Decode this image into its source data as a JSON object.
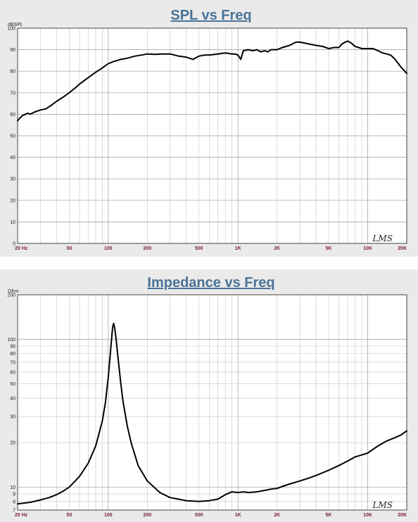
{
  "chart_data": [
    {
      "type": "line",
      "title": "SPL vs Freq",
      "ylabel": "dBSPL",
      "xlabel": "",
      "xscale": "log",
      "xlim": [
        20,
        20000
      ],
      "ylim": [
        0,
        100
      ],
      "grid": true,
      "watermark": "LMS",
      "xtick_labels": [
        "20 Hz",
        "50",
        "100",
        "200",
        "500",
        "1K",
        "2K",
        "5K",
        "10K",
        "20K"
      ],
      "ytick_labels": [
        "100",
        "90",
        "80",
        "70",
        "60",
        "50",
        "40",
        "30",
        "20",
        "10",
        "0"
      ],
      "series": [
        {
          "x": [
            20,
            21,
            22,
            24,
            25,
            27,
            30,
            33,
            36,
            40,
            45,
            50,
            55,
            60,
            70,
            80,
            90,
            100,
            110,
            125,
            140,
            160,
            180,
            200,
            230,
            260,
            300,
            350,
            400,
            450,
            500,
            550,
            600,
            700,
            800,
            900,
            950,
            1000,
            1050,
            1100,
            1200,
            1300,
            1400,
            1500,
            1600,
            1700,
            1800,
            2000,
            2200,
            2500,
            2800,
            3000,
            3300,
            3600,
            4000,
            4500,
            5000,
            5500,
            6000,
            6300,
            6700,
            7000,
            7500,
            8000,
            8500,
            9000,
            10000,
            11000,
            12000,
            13000,
            14000,
            15000,
            16000,
            17000,
            18000,
            19000,
            20000
          ],
          "y": [
            57,
            58.5,
            59.5,
            60.5,
            60,
            61,
            62,
            62.5,
            64,
            66,
            68,
            70,
            72,
            74,
            77,
            79.5,
            81.5,
            83.5,
            84.5,
            85.5,
            86,
            87,
            87.5,
            88,
            87.8,
            88,
            88,
            87,
            86.5,
            85.5,
            87,
            87.5,
            87.5,
            88,
            88.5,
            88,
            88,
            87.5,
            85.5,
            89.5,
            90,
            89.5,
            90,
            89,
            89.5,
            89,
            90,
            90,
            91,
            92,
            93.5,
            93.5,
            93,
            92.5,
            92,
            91.5,
            90.5,
            91,
            91,
            92.5,
            93.5,
            94,
            93,
            91.5,
            91,
            90.5,
            90.5,
            90.5,
            89.5,
            88.5,
            88,
            87.5,
            86,
            84,
            82,
            80.5,
            79
          ]
        }
      ]
    },
    {
      "type": "line",
      "title": "Impedance vs Freq",
      "ylabel": "Ohm",
      "xlabel": "",
      "xscale": "log",
      "yscale": "log",
      "xlim": [
        20,
        20000
      ],
      "ylim": [
        7,
        200
      ],
      "grid": true,
      "watermark": "LMS",
      "xtick_labels": [
        "20 Hz",
        "50",
        "100",
        "200",
        "500",
        "1K",
        "2K",
        "5K",
        "10K",
        "20K"
      ],
      "ytick_labels": [
        "200",
        "100",
        "90",
        "80",
        "70",
        "60",
        "50",
        "40",
        "30",
        "20",
        "10",
        "9",
        "8",
        "7"
      ],
      "series": [
        {
          "x": [
            20,
            25,
            30,
            35,
            40,
            45,
            50,
            60,
            70,
            80,
            90,
            95,
            100,
            105,
            108,
            110,
            112,
            115,
            120,
            125,
            130,
            140,
            150,
            170,
            200,
            250,
            300,
            400,
            500,
            600,
            700,
            800,
            900,
            1000,
            1100,
            1200,
            1400,
            1600,
            1800,
            2000,
            2200,
            2500,
            3000,
            3500,
            4000,
            5000,
            6000,
            7000,
            8000,
            9000,
            10000,
            12000,
            14000,
            16000,
            18000,
            20000
          ],
          "y": [
            7.7,
            7.9,
            8.2,
            8.5,
            8.9,
            9.4,
            10,
            11.8,
            14.5,
            19,
            28,
            37,
            55,
            90,
            120,
            128,
            120,
            100,
            70,
            50,
            38,
            26,
            20,
            14,
            11,
            9.2,
            8.5,
            8.1,
            8.0,
            8.1,
            8.3,
            8.9,
            9.3,
            9.2,
            9.3,
            9.2,
            9.3,
            9.5,
            9.7,
            9.8,
            10.1,
            10.5,
            11.0,
            11.5,
            12,
            13,
            14,
            15,
            16,
            16.5,
            17,
            19,
            20.5,
            21.5,
            22.5,
            24
          ]
        }
      ]
    }
  ]
}
